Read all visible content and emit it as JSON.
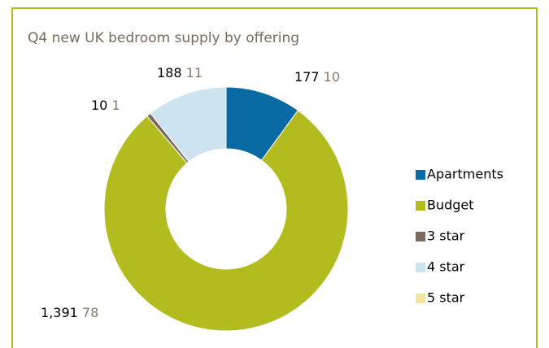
{
  "chart_data": {
    "type": "donut",
    "title": "Q4 new UK bedroom supply by offering",
    "categories": [
      "Apartments",
      "Budget",
      "3 star",
      "4 star",
      "5 star"
    ],
    "values": [
      177,
      1391,
      10,
      188,
      0
    ],
    "value_labels": [
      "177",
      "1,391",
      "10",
      "188",
      null
    ],
    "percents": [
      10,
      78,
      1,
      11,
      null
    ],
    "colors": [
      "#0a6aa3",
      "#b3bc1f",
      "#7b6b5b",
      "#cde3ef",
      "#f3e5a3"
    ],
    "legend": "right"
  }
}
